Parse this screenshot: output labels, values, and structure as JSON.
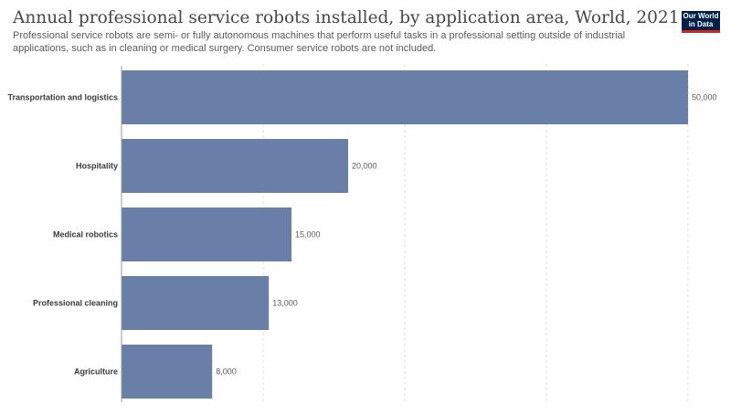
{
  "header": {
    "title": "Annual professional service robots installed, by application area, World, 2021",
    "subtitle": "Professional service robots are semi- or fully autonomous machines that perform useful tasks in a professional setting outside of industrial applications, such as in cleaning or medical surgery. Consumer service robots are not included.",
    "logo_line1": "Our World",
    "logo_line2": "in Data"
  },
  "colors": {
    "bar": "#6a7fa8",
    "grid": "#dddddd",
    "axis": "#999999",
    "logo_bg": "#002147",
    "logo_accent": "#ce261e"
  },
  "chart_data": {
    "type": "bar",
    "orientation": "horizontal",
    "categories": [
      "Transportation and logistics",
      "Hospitality",
      "Medical robotics",
      "Professional cleaning",
      "Agriculture"
    ],
    "values": [
      50000,
      20000,
      15000,
      13000,
      8000
    ],
    "value_labels": [
      "50,000",
      "20,000",
      "15,000",
      "13,000",
      "8,000"
    ],
    "xlim": [
      0,
      50000
    ],
    "grid": true,
    "legend": false
  }
}
